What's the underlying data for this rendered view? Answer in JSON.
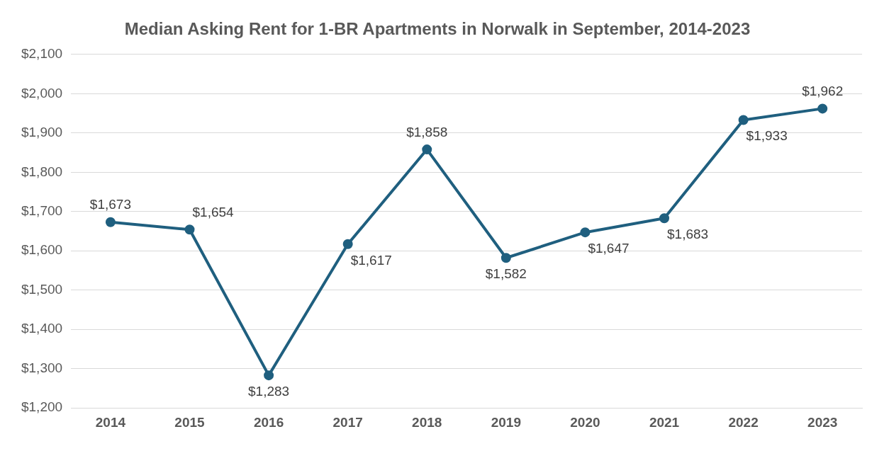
{
  "chart_data": {
    "type": "line",
    "title": "Median Asking Rent for 1-BR Apartments in Norwalk in September, 2014-2023",
    "categories": [
      "2014",
      "2015",
      "2016",
      "2017",
      "2018",
      "2019",
      "2020",
      "2021",
      "2022",
      "2023"
    ],
    "series": [
      {
        "color": "#1f5f7f",
        "values": [
          1673,
          1654,
          1283,
          1617,
          1858,
          1582,
          1647,
          1683,
          1933,
          1962
        ],
        "value_labels": [
          "$1,673",
          "$1,654",
          "$1,283",
          "$1,617",
          "$1,858",
          "$1,582",
          "$1,647",
          "$1,683",
          "$1,933",
          "$1,962"
        ]
      }
    ],
    "ylim": [
      1200,
      2100
    ],
    "yticks": [
      {
        "value": 1200,
        "label": "$1,200"
      },
      {
        "value": 1300,
        "label": "$1,300"
      },
      {
        "value": 1400,
        "label": "$1,400"
      },
      {
        "value": 1500,
        "label": "$1,500"
      },
      {
        "value": 1600,
        "label": "$1,600"
      },
      {
        "value": 1700,
        "label": "$1,700"
      },
      {
        "value": 1800,
        "label": "$1,800"
      },
      {
        "value": 1900,
        "label": "$1,900"
      },
      {
        "value": 2000,
        "label": "$2,000"
      },
      {
        "value": 2100,
        "label": "$2,100"
      }
    ],
    "grid": "y",
    "legend": false,
    "marker": "circle",
    "line_style": "solid"
  }
}
